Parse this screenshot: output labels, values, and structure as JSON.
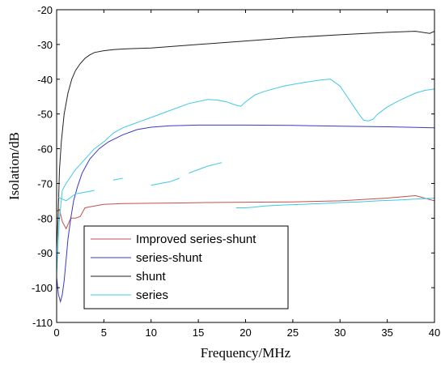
{
  "chart_data": {
    "type": "line",
    "title": "",
    "xlabel": "Frequency/MHz",
    "ylabel": "Isolation/dB",
    "xlim": [
      0,
      40
    ],
    "ylim": [
      -110,
      -20
    ],
    "xticks": [
      "0",
      "5",
      "10",
      "15",
      "20",
      "25",
      "30",
      "35",
      "40"
    ],
    "yticks": [
      "-20",
      "-30",
      "-40",
      "-50",
      "-60",
      "-70",
      "-80",
      "-90",
      "-100",
      "-110"
    ],
    "grid": false,
    "legend_position": "bottom-left",
    "series": [
      {
        "name": "Improved series-shunt",
        "color": "#c0504d",
        "x": [
          0,
          0.3,
          0.6,
          1.0,
          1.5,
          2.0,
          2.5,
          3,
          4,
          5,
          7,
          10,
          13,
          16,
          20,
          25,
          30,
          35,
          38,
          40
        ],
        "y": [
          -78,
          -77.5,
          -81,
          -83,
          -80,
          -80,
          -79.5,
          -77,
          -76.5,
          -76,
          -75.8,
          -75.7,
          -75.6,
          -75.5,
          -75.4,
          -75.3,
          -75.0,
          -74.2,
          -73.5,
          -75.0
        ]
      },
      {
        "name": "series-shunt",
        "color": "#3a3ac8",
        "x": [
          0,
          0.2,
          0.4,
          0.6,
          0.8,
          1.0,
          1.2,
          1.5,
          1.8,
          2.2,
          2.7,
          3.5,
          4.5,
          5.5,
          7,
          8.5,
          10,
          12,
          15,
          20,
          25,
          30,
          35,
          40
        ],
        "y": [
          -97,
          -102,
          -104,
          -102,
          -98,
          -92,
          -86,
          -80,
          -75,
          -71,
          -67,
          -63,
          -60,
          -58,
          -56,
          -54.5,
          -53.8,
          -53.4,
          -53.2,
          -53.2,
          -53.3,
          -53.5,
          -53.7,
          -54.0
        ]
      },
      {
        "name": "shunt",
        "color": "#222222",
        "x": [
          0,
          0.15,
          0.3,
          0.5,
          0.8,
          1.2,
          1.6,
          2.0,
          2.5,
          3,
          3.5,
          4,
          5,
          6,
          7,
          8,
          10,
          12,
          15,
          20,
          25,
          30,
          35,
          38,
          39.5,
          40
        ],
        "y": [
          -89,
          -80,
          -66,
          -58,
          -50,
          -44,
          -40,
          -37.5,
          -35.5,
          -34,
          -33,
          -32.3,
          -31.8,
          -31.5,
          -31.3,
          -31.2,
          -31.0,
          -30.6,
          -30.0,
          -29.0,
          -28.0,
          -27.2,
          -26.5,
          -26.2,
          -26.8,
          -26.2
        ]
      },
      {
        "name": "series",
        "color": "#40c8e8",
        "x": [
          0,
          0.3,
          0.6,
          1.0,
          1.5,
          2,
          3,
          4,
          5,
          6,
          7,
          8,
          9,
          10,
          12,
          14,
          16,
          17,
          18,
          19,
          19.5,
          20,
          21,
          22,
          24,
          26,
          28,
          29,
          30,
          31,
          32,
          32.5,
          33,
          33.5,
          34,
          35,
          36,
          37,
          38,
          39,
          40
        ],
        "y": [
          -96,
          -80,
          -72,
          -70,
          -68,
          -66,
          -63,
          -60,
          -58,
          -55.5,
          -54,
          -53,
          -52,
          -51,
          -49,
          -47,
          -45.8,
          -46,
          -46.5,
          -47.5,
          -47.8,
          -46.5,
          -44.5,
          -43.5,
          -42,
          -41,
          -40.2,
          -40.0,
          -42,
          -46,
          -50,
          -51.8,
          -52,
          -51.5,
          -50,
          -48,
          -46.5,
          -45.2,
          -44,
          -43.2,
          -42.8
        ]
      },
      {
        "name": "",
        "color": "#40c8e8",
        "x": [
          0.2,
          1.0,
          2.0,
          3.0,
          4.0
        ],
        "y": [
          -74,
          -75,
          -73,
          -72.5,
          -72
        ]
      },
      {
        "name": "",
        "color": "#40c8e8",
        "x": [
          6.0,
          7.0
        ],
        "y": [
          -69,
          -68.5
        ]
      },
      {
        "name": "",
        "color": "#40c8e8",
        "x": [
          10.0,
          12.0,
          13.0
        ],
        "y": [
          -70.5,
          -69.5,
          -68.5
        ]
      },
      {
        "name": "",
        "color": "#40c8e8",
        "x": [
          14.0,
          16.0,
          17.5
        ],
        "y": [
          -67,
          -65,
          -64
        ]
      },
      {
        "name": "",
        "color": "#40c8e8",
        "x": [
          19.0,
          20.0,
          21.0,
          22.0,
          24.0,
          26.0,
          28.0,
          30.0,
          32.0,
          34.0,
          36.0,
          38.0,
          40.0
        ],
        "y": [
          -77,
          -77,
          -76.8,
          -76.5,
          -76.2,
          -76.0,
          -75.8,
          -75.5,
          -75.3,
          -75.0,
          -74.8,
          -74.5,
          -74.2
        ]
      }
    ]
  }
}
